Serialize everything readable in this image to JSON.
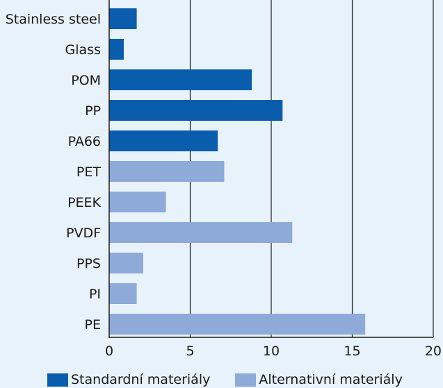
{
  "chart_data": {
    "type": "bar",
    "orientation": "horizontal",
    "categories": [
      "Stainless steel",
      "Glass",
      "POM",
      "PP",
      "PA66",
      "PET",
      "PEEK",
      "PVDF",
      "PPS",
      "PI",
      "PE"
    ],
    "values": [
      1.7,
      0.9,
      8.8,
      10.7,
      6.7,
      7.1,
      3.5,
      11.3,
      2.1,
      1.7,
      15.8
    ],
    "groups": [
      "standard",
      "standard",
      "standard",
      "standard",
      "standard",
      "alternative",
      "alternative",
      "alternative",
      "alternative",
      "alternative",
      "alternative"
    ],
    "xlim": [
      0,
      20
    ],
    "xticks": [
      0,
      5,
      10,
      15,
      20
    ],
    "grid": "vertical",
    "legend": {
      "position": "bottom",
      "entries": [
        {
          "key": "standard",
          "label": "Standardní materiály",
          "color": "#0a5cad"
        },
        {
          "key": "alternative",
          "label": "Alternativní materiály",
          "color": "#8eaad8"
        }
      ]
    }
  }
}
